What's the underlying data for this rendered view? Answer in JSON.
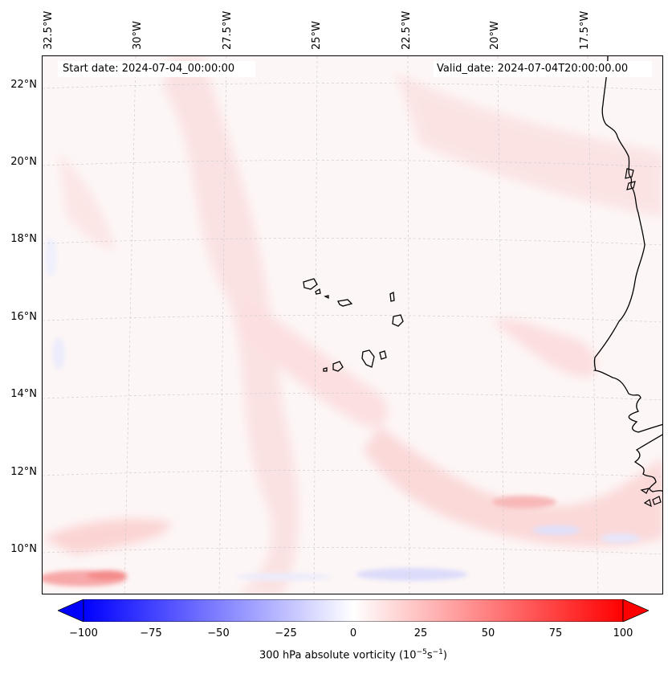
{
  "map": {
    "start_label": "Start date: 2024-07-04_00:00:00",
    "valid_label": "Valid_date: 2024-07-04T20:00:00.00",
    "lon_labels": [
      "32.5°W",
      "30°W",
      "27.5°W",
      "25°W",
      "22.5°W",
      "20°W",
      "17.5°W"
    ],
    "lat_labels": [
      "22°N",
      "20°N",
      "18°N",
      "16°N",
      "14°N",
      "12°N",
      "10°N"
    ],
    "field_description_colors": {
      "background": "#fdf6f6",
      "light_red": "#fde0e0",
      "medium_red": "#fbc4c4",
      "strong_red": "#f9a0a0",
      "light_blue": "#e8e8fb",
      "coastline": "#000000",
      "gridline": "#c8c8c8"
    }
  },
  "colorbar": {
    "ticks": [
      "−100",
      "−75",
      "−50",
      "−25",
      "0",
      "25",
      "50",
      "75",
      "100"
    ],
    "label": "300 hPa absolute vorticity (10",
    "label_exp": "−5",
    "label_mid": "s",
    "label_exp2": "−1",
    "label_end": ")",
    "min": -100,
    "max": 100,
    "colors": {
      "min": "#0000ff",
      "mid": "#ffffff",
      "max": "#ff0000"
    }
  }
}
